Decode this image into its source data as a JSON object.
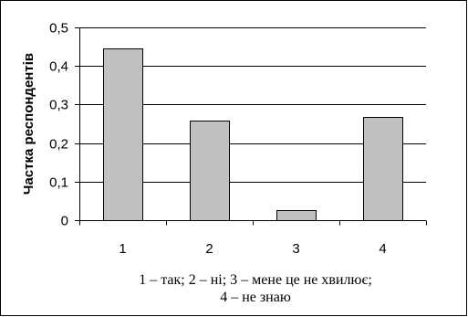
{
  "chart_data": {
    "type": "bar",
    "categories": [
      "1",
      "2",
      "3",
      "4"
    ],
    "values": [
      0.445,
      0.258,
      0.025,
      0.268
    ],
    "title": "",
    "ylabel": "Частка респондентів",
    "xlabel_lines": [
      "1 – так; 2 – ні; 3 – мене це не хвилює;",
      "4 – не знаю"
    ],
    "ylim": [
      0,
      0.5
    ],
    "yticks": [
      0,
      0.1,
      0.2,
      0.3,
      0.4,
      0.5
    ],
    "ytick_labels": [
      "0",
      "0,1",
      "0,2",
      "0,3",
      "0,4",
      "0,5"
    ],
    "grid": true,
    "bar_color": "#c0c0c0",
    "legend": "none"
  }
}
